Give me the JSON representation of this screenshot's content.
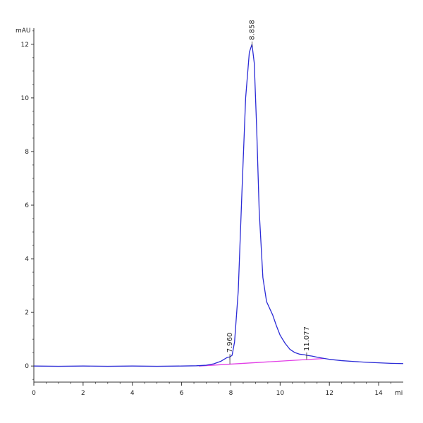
{
  "chart_data": {
    "type": "line",
    "title": "",
    "ylabel": "mAU",
    "xlabel": "mi",
    "xlim": [
      0,
      15
    ],
    "ylim": [
      -0.6,
      12.6
    ],
    "xticks": [
      0,
      2,
      4,
      6,
      8,
      10,
      12,
      14
    ],
    "yticks": [
      0,
      2,
      4,
      6,
      8,
      10,
      12
    ],
    "grid": false,
    "series": [
      {
        "color": "#2b2bd6",
        "x": [
          0,
          1,
          2,
          3,
          4,
          5,
          6,
          6.6,
          7.0,
          7.3,
          7.6,
          7.85,
          7.96,
          8.05,
          8.15,
          8.3,
          8.45,
          8.6,
          8.75,
          8.858,
          8.95,
          9.05,
          9.15,
          9.3,
          9.45,
          9.55,
          9.7,
          9.85,
          10.0,
          10.2,
          10.4,
          10.6,
          10.8,
          11.0,
          11.077,
          11.3,
          11.5,
          11.8,
          12.0,
          12.5,
          13.0,
          13.5,
          14.0,
          14.5,
          15.0
        ],
        "y": [
          0.0,
          -0.01,
          0.0,
          -0.01,
          0.0,
          -0.01,
          0.0,
          0.01,
          0.03,
          0.08,
          0.18,
          0.32,
          0.34,
          0.4,
          0.9,
          2.8,
          6.5,
          10.0,
          11.7,
          12.0,
          11.3,
          8.8,
          5.8,
          3.3,
          2.4,
          2.2,
          1.9,
          1.5,
          1.15,
          0.85,
          0.62,
          0.5,
          0.44,
          0.42,
          0.4,
          0.37,
          0.33,
          0.28,
          0.25,
          0.2,
          0.17,
          0.14,
          0.12,
          0.1,
          0.09
        ]
      }
    ],
    "baseline": {
      "color": "#e23ee6",
      "x": [
        6.7,
        11.8
      ],
      "y": [
        0.0,
        0.28
      ]
    },
    "peaks": [
      {
        "label": "7.960",
        "x": 7.96,
        "y": 0.34
      },
      {
        "label": "8.858",
        "x": 8.858,
        "y": 12.0
      },
      {
        "label": "11.077",
        "x": 11.077,
        "y": 0.4
      }
    ]
  }
}
